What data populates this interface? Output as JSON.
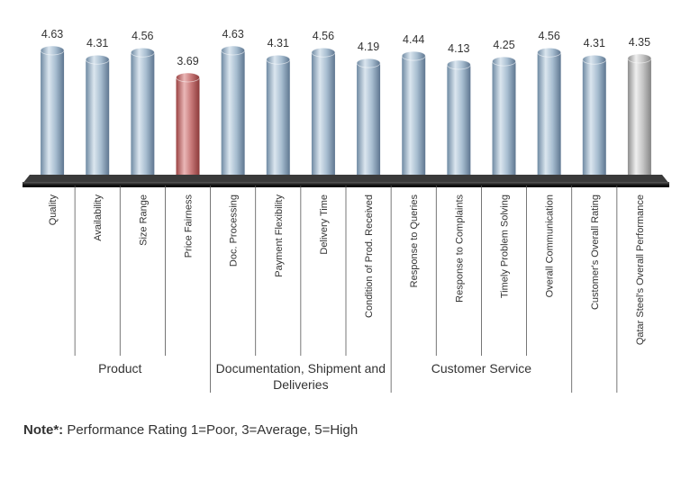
{
  "chart_data": {
    "type": "bar",
    "style": "3d-cylinders",
    "categories": [
      "Quality",
      "Availability",
      "Size Range",
      "Price Fairness",
      "Doc. Processing",
      "Payment Flexibility",
      "Delivery Time",
      "Condition of Prod. Received",
      "Response to Queries",
      "Response to Complaints",
      "Timely Problem Solving",
      "Overall Communication",
      "Customer's Overall Rating",
      "Qatar Steel's Overall Performance"
    ],
    "values": [
      4.63,
      4.31,
      4.56,
      3.69,
      4.63,
      4.31,
      4.56,
      4.19,
      4.44,
      4.13,
      4.25,
      4.56,
      4.31,
      4.35
    ],
    "bar_colors": [
      "blue",
      "blue",
      "blue",
      "red",
      "blue",
      "blue",
      "blue",
      "blue",
      "blue",
      "blue",
      "blue",
      "blue",
      "blue",
      "grey"
    ],
    "colors": {
      "blue": "#9fb6cb",
      "red": "#c66e6e",
      "grey": "#c9c9c9"
    },
    "groups": [
      {
        "label": "Product",
        "start": 0,
        "end": 3
      },
      {
        "label": "Documentation, Shipment and Deliveries",
        "start": 4,
        "end": 7
      },
      {
        "label": "Customer Service",
        "start": 8,
        "end": 11
      }
    ]
  },
  "note": {
    "prefix": "Note*:",
    "text": " Performance Rating 1=Poor, 3=Average, 5=High"
  }
}
